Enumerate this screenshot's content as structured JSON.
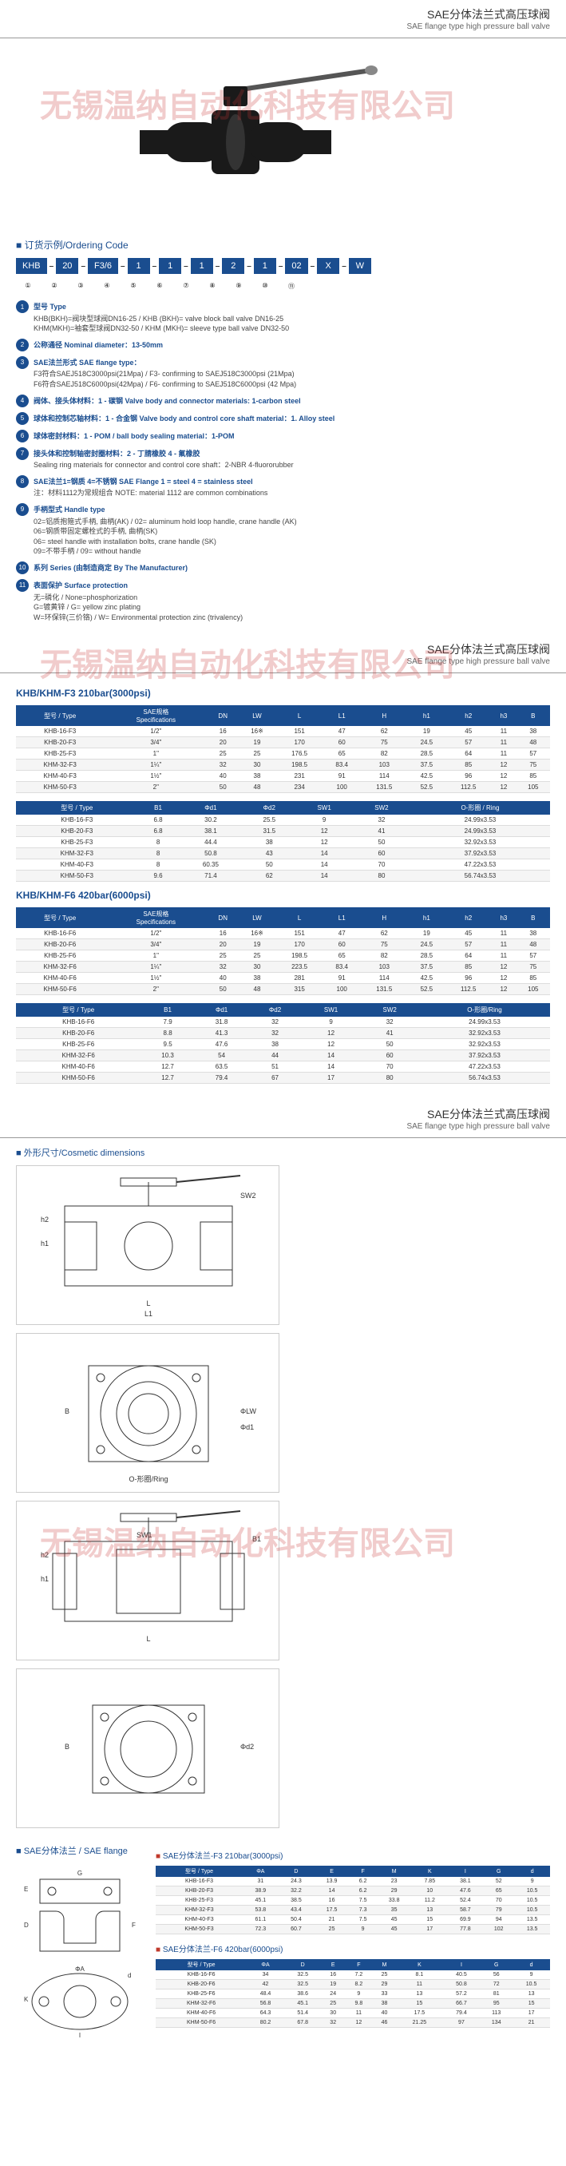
{
  "watermark": "无锡温纳自动化科技有限公司",
  "header": {
    "cn": "SAE分体法兰式高压球阀",
    "en": "SAE flange type high pressure ball valve"
  },
  "ordering": {
    "title": "订货示例/Ordering Code",
    "codes": [
      "KHB",
      "20",
      "F3/6",
      "1",
      "1",
      "1",
      "2",
      "1",
      "02",
      "X",
      "W"
    ],
    "nums": [
      "①",
      "②",
      "③",
      "④",
      "⑤",
      "⑥",
      "⑦",
      "⑧",
      "⑨",
      "⑩",
      "⑪"
    ]
  },
  "specs": [
    {
      "n": "1",
      "label": "型号 Type",
      "desc": "KHB(BKH)=阀块型球阀DN16-25 / KHB (BKH)= valve block ball valve DN16-25\nKHM(MKH)=袖套型球阀DN32-50 / KHM (MKH)= sleeve type ball valve DN32-50"
    },
    {
      "n": "2",
      "label": "公称通径 Nominal diameter：13-50mm",
      "desc": ""
    },
    {
      "n": "3",
      "label": "SAE法兰形式 SAE flange type：",
      "desc": "F3符合SAEJ518C3000psi(21Mpa) / F3- confirming to SAEJ518C3000psi (21Mpa)\nF6符合SAEJ518C6000psi(42Mpa) / F6- confirming to SAEJ518C6000psi (42 Mpa)"
    },
    {
      "n": "4",
      "label": "阀体、接头体材料：1 - 碳钢   Valve body and connector materials: 1-carbon steel",
      "desc": ""
    },
    {
      "n": "5",
      "label": "球体和控制芯轴材料：1 - 合金钢   Valve body and control core shaft material：1. Alloy steel",
      "desc": ""
    },
    {
      "n": "6",
      "label": "球体密封材料：1 - POM / ball body sealing material：1-POM",
      "desc": ""
    },
    {
      "n": "7",
      "label": "接头体和控制轴密封圈材料：2 - 丁腈橡胶  4 - 氟橡胶",
      "desc": "Sealing ring materials for connector and control core shaft：2-NBR  4-fluororubber"
    },
    {
      "n": "8",
      "label": "SAE法兰1=钢质 4=不锈钢   SAE Flange 1 = steel 4 = stainless steel",
      "desc": "注：材料1112为常规组合   NOTE: material 1112 are common combinations"
    },
    {
      "n": "9",
      "label": "手柄型式 Handle type",
      "desc": "02=铝质抱箍式手柄, 曲柄(AK) / 02= aluminum hold loop handle, crane handle (AK)\n06=钢质带固定螺栓式的手柄, 曲柄(SK)\n06= steel handle with installation bolts, crane handle (SK)\n09=不带手柄 / 09= without handle"
    },
    {
      "n": "10",
      "label": "系列 Series (由制造商定 By The Manufacturer)",
      "desc": ""
    },
    {
      "n": "11",
      "label": "表面保护 Surface protection",
      "desc": "无=磷化 / None=phosphorization\nG=镀黄锌 / G= yellow zinc plating\nW=环保锌(三价铬) / W= Environmental protection zinc (trivalency)"
    }
  ],
  "tableF3": {
    "title": "KHB/KHM-F3 210bar(3000psi)",
    "headers1": [
      "型号 / Type",
      "SAE规格\nSpecifications",
      "DN",
      "LW",
      "L",
      "L1",
      "H",
      "h1",
      "h2",
      "h3",
      "B"
    ],
    "rows1": [
      [
        "KHB-16-F3",
        "1/2\"",
        "16",
        "16※",
        "151",
        "47",
        "62",
        "19",
        "45",
        "11",
        "38"
      ],
      [
        "KHB-20-F3",
        "3/4\"",
        "20",
        "19",
        "170",
        "60",
        "75",
        "24.5",
        "57",
        "11",
        "48"
      ],
      [
        "KHB-25-F3",
        "1\"",
        "25",
        "25",
        "176.5",
        "65",
        "82",
        "28.5",
        "64",
        "11",
        "57"
      ],
      [
        "KHM-32-F3",
        "1¼\"",
        "32",
        "30",
        "198.5",
        "83.4",
        "103",
        "37.5",
        "85",
        "12",
        "75"
      ],
      [
        "KHM-40-F3",
        "1½\"",
        "40",
        "38",
        "231",
        "91",
        "114",
        "42.5",
        "96",
        "12",
        "85"
      ],
      [
        "KHM-50-F3",
        "2\"",
        "50",
        "48",
        "234",
        "100",
        "131.5",
        "52.5",
        "112.5",
        "12",
        "105"
      ]
    ],
    "headers2": [
      "型号 / Type",
      "B1",
      "Φd1",
      "Φd2",
      "SW1",
      "SW2",
      "O-形圈 / Ring"
    ],
    "rows2": [
      [
        "KHB-16-F3",
        "6.8",
        "30.2",
        "25.5",
        "9",
        "32",
        "24.99x3.53"
      ],
      [
        "KHB-20-F3",
        "6.8",
        "38.1",
        "31.5",
        "12",
        "41",
        "24.99x3.53"
      ],
      [
        "KHB-25-F3",
        "8",
        "44.4",
        "38",
        "12",
        "50",
        "32.92x3.53"
      ],
      [
        "KHM-32-F3",
        "8",
        "50.8",
        "43",
        "14",
        "60",
        "37.92x3.53"
      ],
      [
        "KHM-40-F3",
        "8",
        "60.35",
        "50",
        "14",
        "70",
        "47.22x3.53"
      ],
      [
        "KHM-50-F3",
        "9.6",
        "71.4",
        "62",
        "14",
        "80",
        "56.74x3.53"
      ]
    ]
  },
  "tableF6": {
    "title": "KHB/KHM-F6 420bar(6000psi)",
    "headers1": [
      "型号 / Type",
      "SAE规格\nSpecifications",
      "DN",
      "LW",
      "L",
      "L1",
      "H",
      "h1",
      "h2",
      "h3",
      "B"
    ],
    "rows1": [
      [
        "KHB-16-F6",
        "1/2\"",
        "16",
        "16※",
        "151",
        "47",
        "62",
        "19",
        "45",
        "11",
        "38"
      ],
      [
        "KHB-20-F6",
        "3/4\"",
        "20",
        "19",
        "170",
        "60",
        "75",
        "24.5",
        "57",
        "11",
        "48"
      ],
      [
        "KHB-25-F6",
        "1\"",
        "25",
        "25",
        "198.5",
        "65",
        "82",
        "28.5",
        "64",
        "11",
        "57"
      ],
      [
        "KHM-32-F6",
        "1¼\"",
        "32",
        "30",
        "223.5",
        "83.4",
        "103",
        "37.5",
        "85",
        "12",
        "75"
      ],
      [
        "KHM-40-F6",
        "1½\"",
        "40",
        "38",
        "281",
        "91",
        "114",
        "42.5",
        "96",
        "12",
        "85"
      ],
      [
        "KHM-50-F6",
        "2\"",
        "50",
        "48",
        "315",
        "100",
        "131.5",
        "52.5",
        "112.5",
        "12",
        "105"
      ]
    ],
    "headers2": [
      "型号 / Type",
      "B1",
      "Φd1",
      "Φd2",
      "SW1",
      "SW2",
      "O-形圈/Ring"
    ],
    "rows2": [
      [
        "KHB-16-F6",
        "7.9",
        "31.8",
        "32",
        "9",
        "32",
        "24.99x3.53"
      ],
      [
        "KHB-20-F6",
        "8.8",
        "41.3",
        "32",
        "12",
        "41",
        "32.92x3.53"
      ],
      [
        "KHB-25-F6",
        "9.5",
        "47.6",
        "38",
        "12",
        "50",
        "32.92x3.53"
      ],
      [
        "KHM-32-F6",
        "10.3",
        "54",
        "44",
        "14",
        "60",
        "37.92x3.53"
      ],
      [
        "KHM-40-F6",
        "12.7",
        "63.5",
        "51",
        "14",
        "70",
        "47.22x3.53"
      ],
      [
        "KHM-50-F6",
        "12.7",
        "79.4",
        "67",
        "17",
        "80",
        "56.74x3.53"
      ]
    ]
  },
  "cosmetic": {
    "title": "外形尺寸/Cosmetic dimensions"
  },
  "flange": {
    "title": "SAE分体法兰 / SAE flange",
    "sub1": "SAE分体法兰-F3 210bar(3000psi)",
    "headers": [
      "型号 / Type",
      "ΦA",
      "D",
      "E",
      "F",
      "M",
      "K",
      "I",
      "G",
      "d"
    ],
    "rows1": [
      [
        "KHB-16-F3",
        "31",
        "24.3",
        "13.9",
        "6.2",
        "23",
        "7.85",
        "38.1",
        "52",
        "9"
      ],
      [
        "KHB-20-F3",
        "38.9",
        "32.2",
        "14",
        "6.2",
        "29",
        "10",
        "47.6",
        "65",
        "10.5"
      ],
      [
        "KHB-25-F3",
        "45.1",
        "38.5",
        "16",
        "7.5",
        "33.8",
        "11.2",
        "52.4",
        "70",
        "10.5"
      ],
      [
        "KHM-32-F3",
        "53.8",
        "43.4",
        "17.5",
        "7.3",
        "35",
        "13",
        "58.7",
        "79",
        "10.5"
      ],
      [
        "KHM-40-F3",
        "61.1",
        "50.4",
        "21",
        "7.5",
        "45",
        "15",
        "69.9",
        "94",
        "13.5"
      ],
      [
        "KHM-50-F3",
        "72.3",
        "60.7",
        "25",
        "9",
        "45",
        "17",
        "77.8",
        "102",
        "13.5"
      ]
    ],
    "sub2": "SAE分体法兰-F6 420bar(6000psi)",
    "rows2": [
      [
        "KHB-16-F6",
        "34",
        "32.5",
        "16",
        "7.2",
        "25",
        "8.1",
        "40.5",
        "56",
        "9"
      ],
      [
        "KHB-20-F6",
        "42",
        "32.5",
        "19",
        "8.2",
        "29",
        "11",
        "50.8",
        "72",
        "10.5"
      ],
      [
        "KHB-25-F6",
        "48.4",
        "38.6",
        "24",
        "9",
        "33",
        "13",
        "57.2",
        "81",
        "13"
      ],
      [
        "KHM-32-F6",
        "56.8",
        "45.1",
        "25",
        "9.8",
        "38",
        "15",
        "66.7",
        "95",
        "15"
      ],
      [
        "KHM-40-F6",
        "64.3",
        "51.4",
        "30",
        "11",
        "40",
        "17.5",
        "79.4",
        "113",
        "17"
      ],
      [
        "KHM-50-F6",
        "80.2",
        "67.8",
        "32",
        "12",
        "46",
        "21.25",
        "97",
        "134",
        "21"
      ]
    ]
  }
}
